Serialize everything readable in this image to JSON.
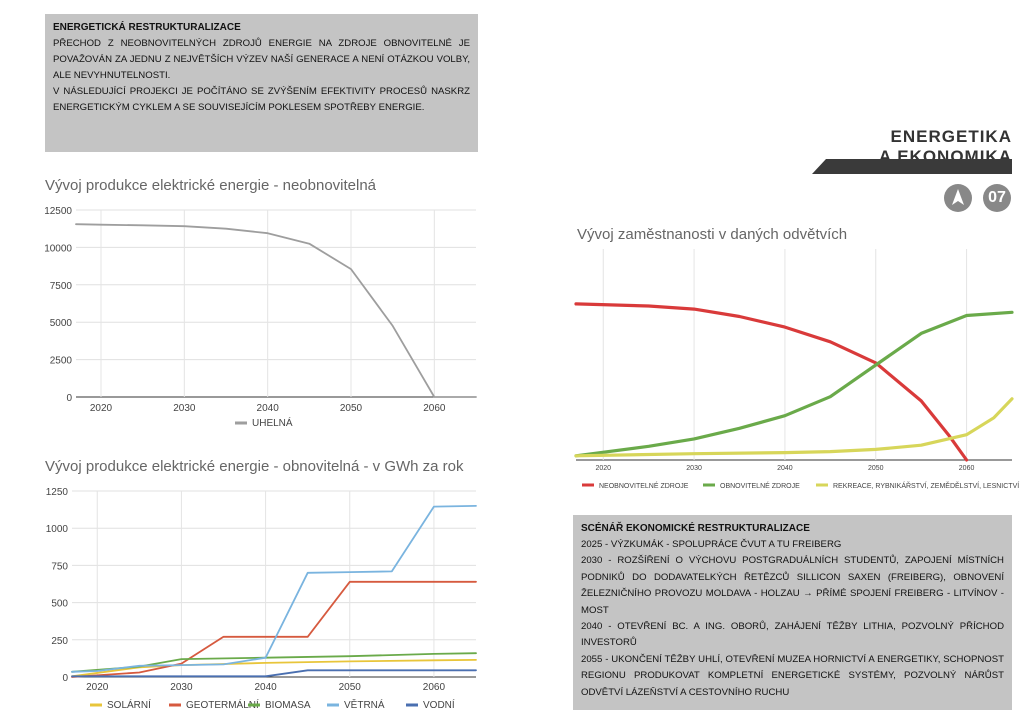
{
  "intro": {
    "title": "ENERGETICKÁ RESTRUKTURALIZACE",
    "paragraphs": [
      "PŘECHOD Z NEOBNOVITELNÝCH ZDROJŮ ENERGIE NA ZDROJE OBNOVITELNÉ JE POVAŽOVÁN ZA JEDNU Z NEJVĚTŠÍCH VÝZEV NAŠÍ GENERACE A NENÍ OTÁZKOU VOLBY, ALE NEVYHNUTELNOSTI.",
      "V NÁSLEDUJÍCÍ PROJEKCI JE POČÍTÁNO SE ZVÝŠENÍM EFEKTIVITY PROCESŮ NASKRZ ENERGETICKÝM CYKLEM A SE SOUVISEJÍCÍM POKLESEM SPOTŘEBY ENERGIE."
    ]
  },
  "header": {
    "line1": "ENERGETIKA",
    "line2": "A EKONOMIKA",
    "page_number": "07",
    "icon": "compass-pin-icon"
  },
  "scenario": {
    "title": "SCÉNÁŘ EKONOMICKÉ RESTRUKTURALIZACE",
    "items": [
      "2025 - VÝZKUMÁK - SPOLUPRÁCE ČVUT A TU FREIBERG",
      "2030 - ROZŠÍŘENÍ O VÝCHOVU POSTGRADUÁLNÍCH STUDENTŮ, ZAPOJENÍ MÍSTNÍCH PODNIKŮ DO DODAVATELKÝCH ŘETĚZCŮ SILLICON SAXEN (FREIBERG), OBNOVENÍ ŽELEZNIČNÍHO PROVOZU MOLDAVA - HOLZAU → PŘÍMÉ SPOJENÍ FREIBERG - LITVÍNOV - MOST",
      "2040 - OTEVŘENÍ BC. A ING. OBORŮ, ZAHÁJENÍ TĚŽBY LITHIA, POZVOLNÝ PŘÍCHOD INVESTORŮ",
      "2055 - UKONČENÍ TĚŽBY UHLÍ, OTEVŘENÍ MUZEA HORNICTVÍ A ENERGETIKY, SCHOPNOST REGIONU PRODUKOVAT KOMPLETNÍ ENERGETICKÉ SYSTÉMY, POZVOLNÝ NÁRŮST ODVĚTVÍ LÁZEŇSTVÍ A CESTOVNÍHO RUCHU"
    ]
  },
  "colors": {
    "gray_box": "#c4c4c4",
    "header_bar": "#3a3a3a",
    "badge": "#888888"
  },
  "chart_data": [
    {
      "id": "nonrenewable",
      "type": "line",
      "title": "Vývoj produkce elektrické energie - neobnovitelná",
      "xlim": [
        2017,
        2065
      ],
      "ylim": [
        0,
        12500
      ],
      "xticks": [
        2020,
        2030,
        2040,
        2050,
        2060
      ],
      "yticks": [
        0,
        2500,
        5000,
        7500,
        10000,
        12500
      ],
      "ytick_labels": [
        "0",
        "2500",
        "5000",
        "7500",
        "10000",
        "12500"
      ],
      "grid": true,
      "legend": "bottom",
      "series": [
        {
          "name": "UHELNÁ",
          "color": "#9e9e9e",
          "x": [
            2017,
            2020,
            2025,
            2030,
            2035,
            2040,
            2045,
            2050,
            2055,
            2060,
            2065
          ],
          "y": [
            11550,
            11520,
            11480,
            11420,
            11250,
            10950,
            10250,
            8550,
            4750,
            0,
            0
          ]
        }
      ]
    },
    {
      "id": "renewable",
      "type": "line",
      "title": "Vývoj produkce elektrické energie - obnovitelná - v GWh za rok",
      "xlim": [
        2017,
        2065
      ],
      "ylim": [
        0,
        1250
      ],
      "xticks": [
        2020,
        2030,
        2040,
        2050,
        2060
      ],
      "yticks": [
        0,
        250,
        500,
        750,
        1000,
        1250
      ],
      "ytick_labels": [
        "0",
        "250",
        "500",
        "750",
        "1000",
        "1250"
      ],
      "grid": true,
      "legend": "bottom",
      "series": [
        {
          "name": "SOLÁRNÍ",
          "color": "#e8c53a",
          "x": [
            2017,
            2025,
            2030,
            2040,
            2050,
            2060,
            2065
          ],
          "y": [
            5,
            65,
            80,
            95,
            105,
            112,
            115
          ]
        },
        {
          "name": "GEOTERMÁLNÍ",
          "color": "#d65a3f",
          "x": [
            2017,
            2025,
            2030,
            2035,
            2045,
            2050,
            2060,
            2065
          ],
          "y": [
            0,
            30,
            90,
            270,
            270,
            640,
            640,
            640
          ]
        },
        {
          "name": "BIOMASA",
          "color": "#6aaa4a",
          "x": [
            2017,
            2025,
            2030,
            2040,
            2050,
            2060,
            2065
          ],
          "y": [
            35,
            70,
            120,
            130,
            140,
            155,
            160
          ]
        },
        {
          "name": "VĚTRNÁ",
          "color": "#7ab4df",
          "x": [
            2017,
            2020,
            2025,
            2030,
            2035,
            2040,
            2045,
            2050,
            2055,
            2060,
            2065
          ],
          "y": [
            35,
            40,
            75,
            80,
            85,
            130,
            700,
            705,
            710,
            1145,
            1150
          ]
        },
        {
          "name": "VODNÍ",
          "color": "#4a6fb0",
          "x": [
            2017,
            2030,
            2040,
            2045,
            2050,
            2060,
            2065
          ],
          "y": [
            5,
            5,
            5,
            45,
            45,
            45,
            45
          ]
        }
      ]
    },
    {
      "id": "employment",
      "type": "line",
      "title": "Vývoj zaměstnanosti v daných odvětvích",
      "xlim": [
        2017,
        2065
      ],
      "ylim": [
        0,
        100
      ],
      "xticks": [
        2020,
        2030,
        2040,
        2050,
        2060
      ],
      "grid": true,
      "legend": "bottom",
      "series": [
        {
          "name": "NEOBNOVITELNÉ ZDROJE",
          "color": "#d93a3a",
          "x": [
            2017,
            2025,
            2030,
            2035,
            2040,
            2045,
            2050,
            2055,
            2058,
            2060
          ],
          "y": [
            74,
            73,
            71.5,
            68,
            63,
            56,
            46,
            28,
            12,
            0
          ]
        },
        {
          "name": "OBNOVITELNÉ ZDROJE",
          "color": "#6aaa4a",
          "x": [
            2017,
            2025,
            2030,
            2035,
            2040,
            2045,
            2050,
            2055,
            2060,
            2065
          ],
          "y": [
            2,
            6.5,
            10,
            15,
            21,
            30,
            45,
            60,
            68.5,
            70
          ]
        },
        {
          "name": "REKREACE, RYBNIKÁŘSTVÍ, ZEMĚDĚLSTVÍ, LESNICTVÍ",
          "color": "#d7d65a",
          "x": [
            2017,
            2030,
            2040,
            2045,
            2050,
            2055,
            2060,
            2063,
            2065
          ],
          "y": [
            2,
            3,
            3.5,
            4,
            5,
            7,
            12,
            20,
            29
          ]
        }
      ]
    }
  ]
}
